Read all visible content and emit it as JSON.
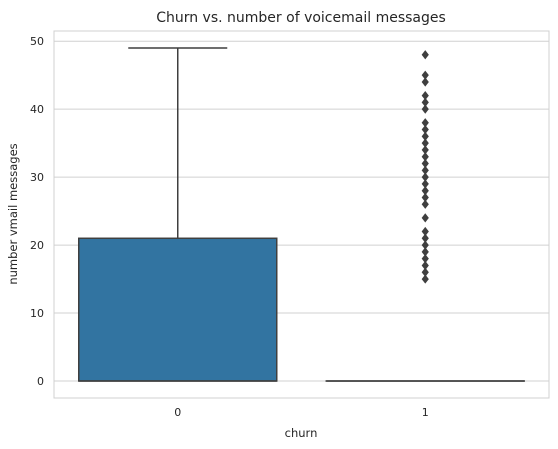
{
  "chart_data": {
    "type": "box",
    "title": "Churn vs. number of voicemail messages",
    "xlabel": "churn",
    "ylabel": "number vmail messages",
    "categories": [
      "0",
      "1"
    ],
    "ylim": [
      -2.5,
      51.5
    ],
    "yticks": [
      0,
      10,
      20,
      30,
      40,
      50
    ],
    "grid": "horizontal",
    "boxes": [
      {
        "category": "0",
        "color": "#3274a1",
        "whisker_low": 0,
        "q1": 0,
        "median": 0,
        "q3": 21,
        "whisker_high": 49,
        "outliers": []
      },
      {
        "category": "1",
        "color": "#e1812c",
        "whisker_low": 0,
        "q1": 0,
        "median": 0,
        "q3": 0,
        "whisker_high": 0,
        "outliers": [
          15,
          16,
          17,
          18,
          19,
          20,
          21,
          22,
          24,
          26,
          27,
          28,
          29,
          30,
          31,
          32,
          33,
          34,
          35,
          36,
          37,
          38,
          40,
          41,
          42,
          44,
          45,
          48
        ]
      }
    ]
  }
}
